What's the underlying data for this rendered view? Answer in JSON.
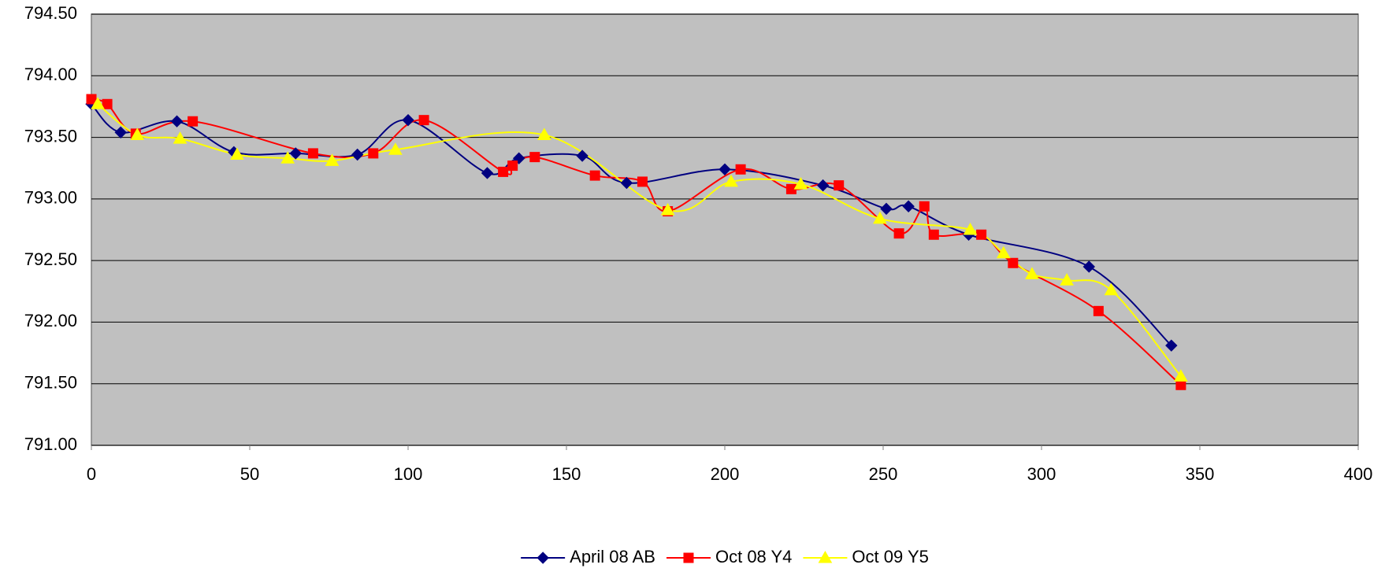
{
  "chart_data": {
    "type": "scatter",
    "smooth": true,
    "xlim": [
      0,
      400
    ],
    "xticks": [
      0,
      50,
      100,
      150,
      200,
      250,
      300,
      350,
      400
    ],
    "ylim": [
      791,
      794.5
    ],
    "yticks": [
      {
        "value": 791,
        "label": "791.00"
      },
      {
        "value": 791.5,
        "label": "791.50"
      },
      {
        "value": 792,
        "label": "792.00"
      },
      {
        "value": 792.5,
        "label": "792.50"
      },
      {
        "value": 793,
        "label": "793.00"
      },
      {
        "value": 793.5,
        "label": "793.50"
      },
      {
        "value": 794,
        "label": "794.00"
      },
      {
        "value": 794.5,
        "label": "794.50"
      }
    ],
    "grid": true,
    "plot_background": "#c0c0c0",
    "legend": "bottom",
    "series": [
      {
        "name": "April 08 AB",
        "color": "#000080",
        "marker": "diamond",
        "x": [
          0,
          9.25,
          27,
          45,
          64.5,
          84,
          100,
          125,
          135,
          155,
          169,
          200,
          231,
          251,
          258,
          277,
          315,
          341
        ],
        "values": [
          793.77,
          793.54,
          793.63,
          793.38,
          793.37,
          793.36,
          793.64,
          793.21,
          793.33,
          793.35,
          793.13,
          793.24,
          793.11,
          792.92,
          792.94,
          792.71,
          792.45,
          791.81
        ]
      },
      {
        "name": "Oct 08 Y4",
        "color": "#ff0000",
        "marker": "square",
        "x": [
          0,
          5,
          14,
          32,
          70,
          89,
          105,
          130,
          133,
          140,
          159,
          174,
          182,
          205,
          221,
          236,
          255,
          263,
          266,
          281,
          291,
          318,
          344
        ],
        "values": [
          793.81,
          793.77,
          793.53,
          793.63,
          793.37,
          793.37,
          793.64,
          793.22,
          793.27,
          793.34,
          793.19,
          793.14,
          792.9,
          793.24,
          793.08,
          793.11,
          792.72,
          792.94,
          792.71,
          792.71,
          792.48,
          792.09,
          791.49
        ]
      },
      {
        "name": "Oct 09 Y5",
        "color": "#ffff00",
        "marker": "triangle",
        "x": [
          2,
          14.5,
          28,
          46,
          62,
          76,
          96,
          143,
          182,
          202,
          224,
          249,
          277.5,
          288,
          297,
          308,
          322,
          344
        ],
        "values": [
          793.77,
          793.52,
          793.49,
          793.36,
          793.33,
          793.31,
          793.4,
          793.52,
          792.91,
          793.14,
          793.12,
          792.84,
          792.75,
          792.56,
          792.39,
          792.34,
          792.26,
          791.56
        ]
      }
    ]
  }
}
